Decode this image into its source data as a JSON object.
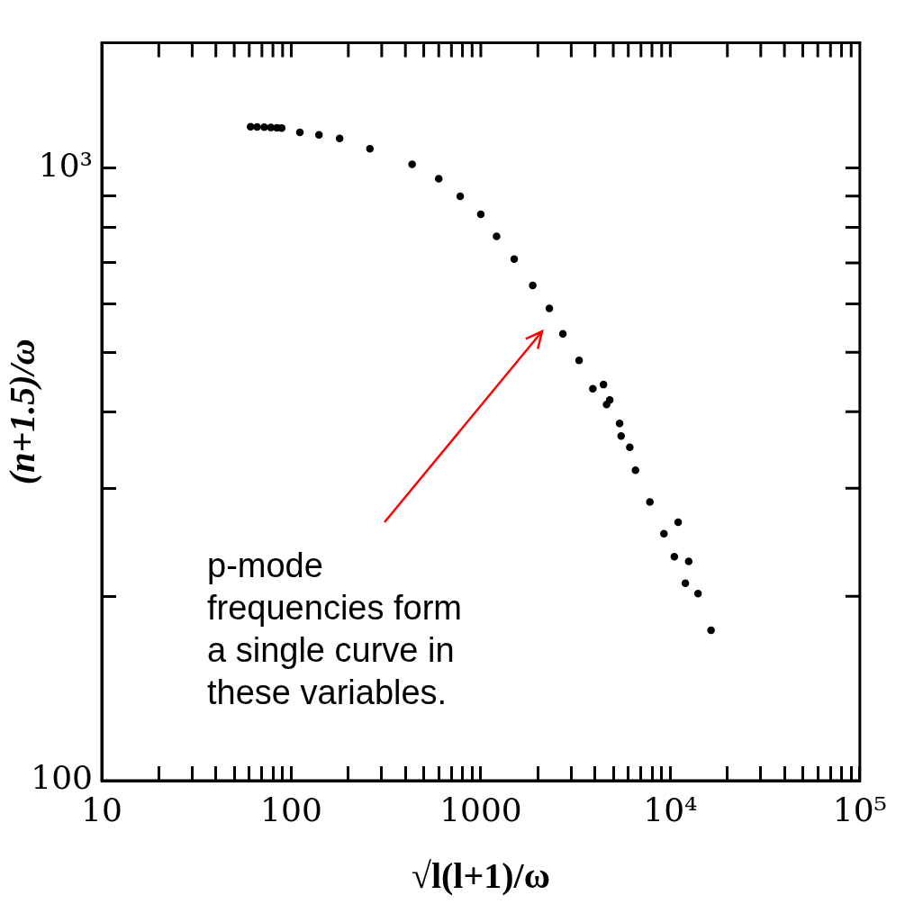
{
  "chart_data": {
    "type": "scatter",
    "xlabel": "√l(l+1)/ω",
    "ylabel": "(n+1.5)/ω",
    "log": "xy",
    "marker": "circle",
    "xlim": [
      10,
      100000
    ],
    "ylim": [
      100,
      1600
    ],
    "xticks": [
      {
        "value": 10,
        "label": "10"
      },
      {
        "value": 20,
        "label": null
      },
      {
        "value": 30,
        "label": null
      },
      {
        "value": 40,
        "label": null
      },
      {
        "value": 50,
        "label": null
      },
      {
        "value": 60,
        "label": null
      },
      {
        "value": 70,
        "label": null
      },
      {
        "value": 80,
        "label": null
      },
      {
        "value": 90,
        "label": null
      },
      {
        "value": 100,
        "label": "100"
      },
      {
        "value": 200,
        "label": null
      },
      {
        "value": 300,
        "label": null
      },
      {
        "value": 400,
        "label": null
      },
      {
        "value": 500,
        "label": null
      },
      {
        "value": 600,
        "label": null
      },
      {
        "value": 700,
        "label": null
      },
      {
        "value": 800,
        "label": null
      },
      {
        "value": 900,
        "label": null
      },
      {
        "value": 1000,
        "label": "1000"
      },
      {
        "value": 2000,
        "label": null
      },
      {
        "value": 3000,
        "label": null
      },
      {
        "value": 4000,
        "label": null
      },
      {
        "value": 5000,
        "label": null
      },
      {
        "value": 6000,
        "label": null
      },
      {
        "value": 7000,
        "label": null
      },
      {
        "value": 8000,
        "label": null
      },
      {
        "value": 9000,
        "label": null
      },
      {
        "value": 10000,
        "label": "10⁴"
      },
      {
        "value": 20000,
        "label": null
      },
      {
        "value": 30000,
        "label": null
      },
      {
        "value": 40000,
        "label": null
      },
      {
        "value": 50000,
        "label": null
      },
      {
        "value": 60000,
        "label": null
      },
      {
        "value": 70000,
        "label": null
      },
      {
        "value": 80000,
        "label": null
      },
      {
        "value": 90000,
        "label": null
      },
      {
        "value": 100000,
        "label": "10⁵"
      }
    ],
    "yticks": [
      {
        "value": 100,
        "label": "100"
      },
      {
        "value": 200,
        "label": null
      },
      {
        "value": 300,
        "label": null
      },
      {
        "value": 400,
        "label": null
      },
      {
        "value": 500,
        "label": null
      },
      {
        "value": 600,
        "label": null
      },
      {
        "value": 700,
        "label": null
      },
      {
        "value": 800,
        "label": null
      },
      {
        "value": 900,
        "label": null
      },
      {
        "value": 1000,
        "label": "10³"
      }
    ],
    "series": [
      {
        "color": "#000000",
        "x": [
          61,
          66,
          72,
          78,
          84,
          89,
          111,
          140,
          180,
          260,
          434,
          600,
          779,
          1000,
          1211,
          1500,
          1879,
          2300,
          2710,
          3300,
          3900,
          4440,
          4610,
          5500,
          6550,
          7800,
          9250,
          10500,
          12000
        ],
        "values": [
          1167,
          1166,
          1165,
          1164,
          1163,
          1162,
          1143,
          1132,
          1117,
          1075,
          1014,
          960,
          899,
          840,
          773,
          710,
          643,
          590,
          536,
          485,
          436,
          443,
          411,
          365,
          321,
          285,
          253,
          232,
          210
        ]
      },
      {
        "color": "#000000",
        "x": [
          4790,
          5400,
          6110
        ],
        "values": [
          418,
          383,
          350
        ]
      },
      {
        "color": "#000000",
        "x": [
          11000,
          12500,
          14000,
          16400
        ],
        "values": [
          264,
          228,
          202,
          176
        ]
      }
    ],
    "annotations": [
      "p-mode\nfrequencies form\na single curve in\nthese variables."
    ]
  }
}
